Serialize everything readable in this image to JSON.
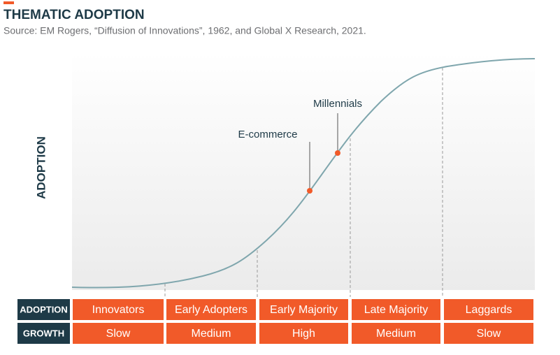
{
  "header": {
    "title": "THEMATIC ADOPTION",
    "source": "Source: EM Rogers, “Diffusion of Innovations”, 1962, and Global X Research, 2021."
  },
  "y_label": "ADOPTION",
  "annotations": [
    "E-commerce",
    "Millennials"
  ],
  "table": {
    "rows": [
      [
        "ADOPTION",
        "Innovators",
        "Early Adopters",
        "Early Majority",
        "Late Majority",
        "Laggards"
      ],
      [
        "GROWTH",
        "Slow",
        "Medium",
        "High",
        "Medium",
        "Slow"
      ]
    ]
  }
}
